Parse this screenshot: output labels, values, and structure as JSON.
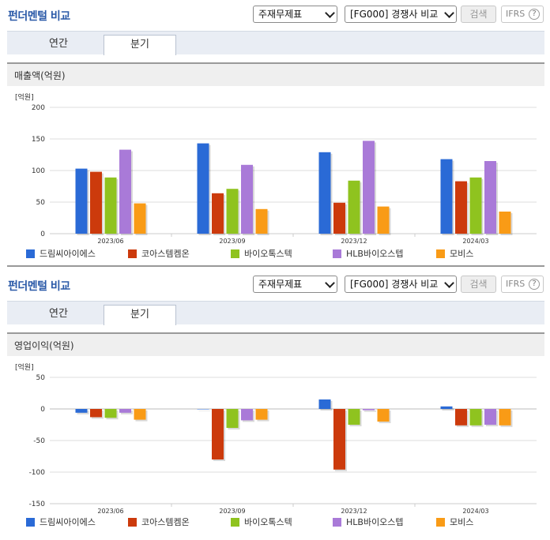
{
  "panels": [
    {
      "title": "펀더멘털 비교",
      "select_statement": "주재무제표",
      "select_compare": "[FG000] 경쟁사 비교",
      "search_label": "검색",
      "ifrs_label": "IFRS",
      "tabs": [
        "연간",
        "분기"
      ],
      "active_tab": 1,
      "chart_title": "매출액(억원)"
    },
    {
      "title": "펀더멘털 비교",
      "select_statement": "주재무제표",
      "select_compare": "[FG000] 경쟁사 비교",
      "search_label": "검색",
      "ifrs_label": "IFRS",
      "tabs": [
        "연간",
        "분기"
      ],
      "active_tab": 1,
      "chart_title": "영업이익(억원)"
    }
  ],
  "colors": {
    "series": [
      "#2a6ad6",
      "#cc3a0c",
      "#8fc31f",
      "#a97ad8",
      "#f99b16"
    ],
    "title": "#2b5aa8",
    "grid": "#dddddd"
  },
  "chart_data": [
    {
      "type": "bar",
      "title": "매출액(억원)",
      "unit": "[억원]",
      "categories": [
        "2023/06",
        "2023/09",
        "2023/12",
        "2024/03"
      ],
      "ylim": [
        0,
        200
      ],
      "yticks": [
        0,
        50,
        100,
        150,
        200
      ],
      "grid": true,
      "legend": "bottom",
      "series": [
        {
          "name": "드림씨아이에스",
          "values": [
            103,
            143,
            129,
            118
          ]
        },
        {
          "name": "코아스템켐온",
          "values": [
            98,
            64,
            49,
            83
          ]
        },
        {
          "name": "바이오톡스텍",
          "values": [
            89,
            71,
            84,
            89
          ]
        },
        {
          "name": "HLB바이오스텝",
          "values": [
            133,
            109,
            147,
            115
          ]
        },
        {
          "name": "모비스",
          "values": [
            48,
            39,
            43,
            35
          ]
        }
      ]
    },
    {
      "type": "bar",
      "title": "영업이익(억원)",
      "unit": "[억원]",
      "categories": [
        "2023/06",
        "2023/09",
        "2023/12",
        "2024/03"
      ],
      "ylim": [
        -150,
        50
      ],
      "yticks": [
        -150,
        -100,
        -50,
        0,
        50
      ],
      "grid": true,
      "legend": "bottom",
      "series": [
        {
          "name": "드림씨아이에스",
          "values": [
            -6,
            0,
            15,
            4
          ]
        },
        {
          "name": "코아스템켐온",
          "values": [
            -13,
            -80,
            -96,
            -26
          ]
        },
        {
          "name": "바이오톡스텍",
          "values": [
            -14,
            -30,
            -25,
            -26
          ]
        },
        {
          "name": "HLB바이오스텝",
          "values": [
            -6,
            -18,
            -2,
            -25
          ]
        },
        {
          "name": "모비스",
          "values": [
            -17,
            -17,
            -20,
            -26
          ]
        }
      ]
    }
  ]
}
